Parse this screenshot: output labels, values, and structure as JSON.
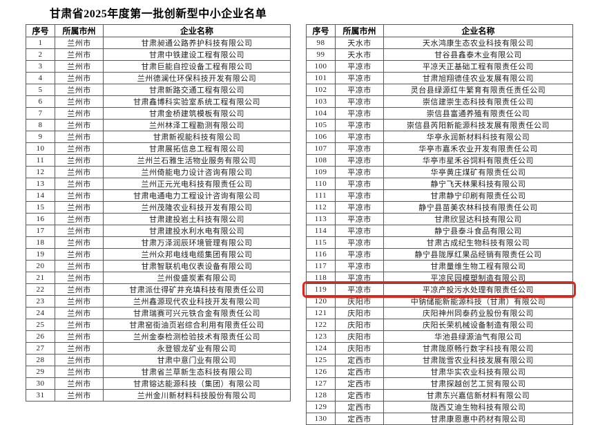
{
  "title": "甘肃省2025年度第一批创新型中小企业名单",
  "columns": [
    "序号",
    "所属市州",
    "企业名称"
  ],
  "highlight": {
    "row_no": "119",
    "color": "#e0251b"
  },
  "left_table": {
    "rows": [
      [
        "1",
        "兰州市",
        "甘肃昶通公路养护科技有限公司"
      ],
      [
        "2",
        "兰州市",
        "甘肃中铁建设工程有限公司"
      ],
      [
        "3",
        "兰州市",
        "甘肃巨能自控设备工程有限公司"
      ],
      [
        "4",
        "兰州市",
        "兰州德澜仕环保科技开发有限公司"
      ],
      [
        "5",
        "兰州市",
        "甘肃新路交通工程有限公司"
      ],
      [
        "6",
        "兰州市",
        "甘肃鑫博科实验室系统工程有限公司"
      ],
      [
        "7",
        "兰州市",
        "甘肃金桥建筑模板有限公司"
      ],
      [
        "8",
        "兰州市",
        "兰州林泽工程勘测有限公司"
      ],
      [
        "9",
        "兰州市",
        "甘肃新视能科技有限公司"
      ],
      [
        "10",
        "兰州市",
        "甘肃展拓信息工程有限公司"
      ],
      [
        "11",
        "兰州市",
        "兰州兰石雅生活物业服务有限公司"
      ],
      [
        "12",
        "兰州市",
        "兰州倚能电力设计咨询有限公司"
      ],
      [
        "13",
        "兰州市",
        "兰州正元光电科技有限责任公司"
      ],
      [
        "14",
        "兰州市",
        "甘肃电通电力工程设计咨询有限公司"
      ],
      [
        "15",
        "兰州市",
        "兰州茂隆农业科技开发有限公司"
      ],
      [
        "16",
        "兰州市",
        "甘肃建投岩土科技有限公司"
      ],
      [
        "17",
        "兰州市",
        "甘肃建投水利水电有限公司"
      ],
      [
        "18",
        "兰州市",
        "甘肃万泽润辰环境管理有限公司"
      ],
      [
        "19",
        "兰州市",
        "兰州众邦电线电缆集团有限公司"
      ],
      [
        "20",
        "兰州市",
        "甘肃智联机电仪表设备有限公司"
      ],
      [
        "21",
        "兰州市",
        "兰州俊盛炭素有限公司"
      ],
      [
        "22",
        "兰州市",
        "甘肃派仕得矿井充填科技有限责任公司"
      ],
      [
        "23",
        "兰州市",
        "兰州鑫源现代农业科技开发有限公司"
      ],
      [
        "24",
        "兰州市",
        "甘肃瑞赛可兴元铁合金有限责任公司"
      ],
      [
        "25",
        "兰州市",
        "甘肃窑街油页岩综合利用有限责任公司"
      ],
      [
        "26",
        "兰州市",
        "兰州金泰检测检验技术有限责任公司"
      ],
      [
        "27",
        "兰州市",
        "永登银龙矿业有限公司"
      ],
      [
        "28",
        "兰州市",
        "甘肃中意门业有限公司"
      ],
      [
        "29",
        "兰州市",
        "甘肃省兰草新生态科技有限公司"
      ],
      [
        "30",
        "兰州市",
        "甘肃镕达能源科技（集团）有限公司"
      ],
      [
        "31",
        "兰州市",
        "兰州金川新材料科技股份有限公司"
      ]
    ]
  },
  "right_table": {
    "rows": [
      [
        "98",
        "天水市",
        "天水鸿康生态农业科技有限公司"
      ],
      [
        "99",
        "天水市",
        "甘谷县鑫泰木业有限公司"
      ],
      [
        "100",
        "平凉市",
        "平凉天正基础工程有限责任公司"
      ],
      [
        "101",
        "平凉市",
        "甘肃旭翔德佳农业发展有限公司"
      ],
      [
        "102",
        "平凉市",
        "灵台县绿源红牛繁育有限责任责任公司"
      ],
      [
        "103",
        "平凉市",
        "崇信建崇生态科技有限责任公司"
      ],
      [
        "104",
        "平凉市",
        "崇信县富通养殖有限责任公司"
      ],
      [
        "105",
        "平凉市",
        "崇信县芮阳新能源科技发展有限责任公司"
      ],
      [
        "106",
        "平凉市",
        "华亭永润新材料科技有限公司"
      ],
      [
        "107",
        "平凉市",
        "华亭市嘉禾农业开发有限责任公司"
      ],
      [
        "108",
        "平凉市",
        "华亭市星禾谷饲料有限责任公司"
      ],
      [
        "109",
        "平凉市",
        "华亭黄庄煤矿有限责任公司"
      ],
      [
        "110",
        "平凉市",
        "静宁飞天林果科技有限公司"
      ],
      [
        "111",
        "平凉市",
        "甘肃静宁印刷有限责任公司"
      ],
      [
        "112",
        "平凉市",
        "静宁县苗美农林科技有限责任公司"
      ],
      [
        "113",
        "平凉市",
        "甘肃欣昱达科技有限公司"
      ],
      [
        "114",
        "平凉市",
        "静宁县泰斗食品有限公司"
      ],
      [
        "115",
        "平凉市",
        "甘肃古成纪生物科技有限公司"
      ],
      [
        "116",
        "平凉市",
        "静宁县陇厚红果品经销有限责任公司"
      ],
      [
        "117",
        "平凉市",
        "甘肃量维生物工程有限公司"
      ],
      [
        "118",
        "平凉市",
        "平凉民园模塑制造有限公司"
      ],
      [
        "119",
        "平凉市",
        "平凉产投污水处理有限责任公司"
      ],
      [
        "120",
        "庆阳市",
        "中钠储能新能源科技（甘肃）有限公司"
      ],
      [
        "121",
        "庆阳市",
        "庆阳神州同泰药业股份有限公司"
      ],
      [
        "122",
        "庆阳市",
        "庆阳长荣机械设备制造有限公司"
      ],
      [
        "123",
        "庆阳市",
        "华池县绿源油气有限公司"
      ],
      [
        "124",
        "庆阳市",
        "甘肃陇原畅行数字科技有限公司"
      ],
      [
        "125",
        "定西市",
        "甘肃陇雪农业科技发展有限公司"
      ],
      [
        "126",
        "定西市",
        "甘肃华实农业科技有限公司"
      ],
      [
        "127",
        "定西市",
        "甘肃探越创艺工贸有限公司"
      ],
      [
        "128",
        "定西市",
        "甘肃东兴嘉信新材料有限公司"
      ],
      [
        "129",
        "定西市",
        "陇西艾迪生物科技有限公司"
      ],
      [
        "130",
        "定西市",
        "甘肃康恩惠中药材有限公司"
      ]
    ]
  }
}
